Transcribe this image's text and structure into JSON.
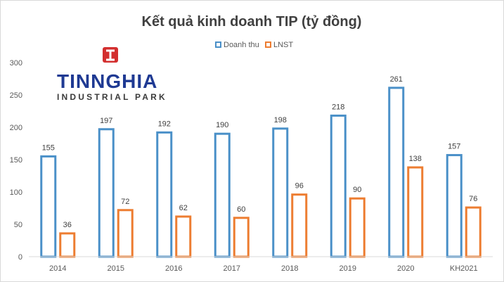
{
  "chart_data": {
    "type": "bar",
    "title": "Kết quả kinh doanh TIP (tỷ đồng)",
    "categories": [
      "2014",
      "2015",
      "2016",
      "2017",
      "2018",
      "2019",
      "2020",
      "KH2021"
    ],
    "series": [
      {
        "name": "Doanh thu",
        "values": [
          155,
          197,
          192,
          190,
          198,
          218,
          261,
          157
        ],
        "color": "#4a90c8"
      },
      {
        "name": "LNST",
        "values": [
          36,
          72,
          62,
          60,
          96,
          90,
          138,
          76
        ],
        "color": "#ed7d31"
      }
    ],
    "ylim": [
      0,
      300
    ],
    "yticks": [
      0,
      50,
      100,
      150,
      200,
      250,
      300
    ],
    "xlabel": "",
    "ylabel": "",
    "legend_position": "top",
    "grid": false,
    "bar_style": "outline"
  },
  "logo": {
    "brand": "TINNGHIA",
    "subtitle": "INDUSTRIAL PARK",
    "color": "#1f3a93",
    "mark_color": "#d32f2f"
  }
}
